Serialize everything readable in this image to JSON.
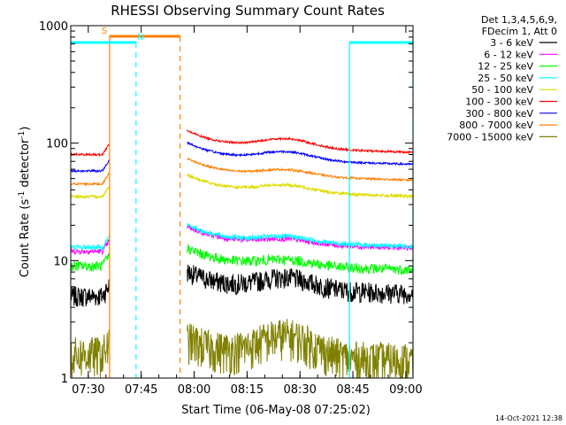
{
  "chart_data": {
    "type": "line",
    "title": "RHESSI Observing Summary Count Rates",
    "ylabel_parts": [
      "Count Rate (s",
      "-1",
      " detector",
      "-1",
      ")"
    ],
    "xlabel": "Start Time (06-May-08 07:25:02)",
    "footer_date": "14-Oct-2021 12:38",
    "yscale": "log",
    "ylim": [
      1,
      1000
    ],
    "xlim_minutes": [
      0,
      97
    ],
    "y_ticks": [
      {
        "value": 1,
        "label": "1"
      },
      {
        "value": 10,
        "label": "10"
      },
      {
        "value": 100,
        "label": "100"
      },
      {
        "value": 1000,
        "label": "1000"
      }
    ],
    "x_ticks": [
      {
        "minute": 4.97,
        "label": "07:30"
      },
      {
        "minute": 19.97,
        "label": "07:45"
      },
      {
        "minute": 34.97,
        "label": "08:00"
      },
      {
        "minute": 49.97,
        "label": "08:15"
      },
      {
        "minute": 64.97,
        "label": "08:30"
      },
      {
        "minute": 79.97,
        "label": "08:45"
      },
      {
        "minute": 94.97,
        "label": "09:00"
      }
    ],
    "legend_header": [
      "Det 1,3,4,5,6,9,",
      "FDecim 1, Att 0"
    ],
    "gap_minutes": [
      11,
      33
    ],
    "series": [
      {
        "name": "3 - 6 keV",
        "color": "#000000",
        "level_a": 5.0,
        "level_b": 6.0,
        "bump": 1.25,
        "noise": 0.2
      },
      {
        "name": "6 - 12 keV",
        "color": "#ff00ff",
        "level_a": 12.0,
        "level_b": 14.5,
        "bump": 1.1,
        "noise": 0.05
      },
      {
        "name": "12 - 25 keV",
        "color": "#00ff00",
        "level_a": 9.0,
        "level_b": 9.5,
        "bump": 1.12,
        "noise": 0.1
      },
      {
        "name": "25 - 50 keV",
        "color": "#00ffff",
        "level_a": 13.0,
        "level_b": 15.0,
        "bump": 1.12,
        "noise": 0.05
      },
      {
        "name": "50 - 100 keV",
        "color": "#dddd00",
        "level_a": 35.0,
        "level_b": 40.0,
        "bump": 1.15,
        "noise": 0.03
      },
      {
        "name": "100 - 300 keV",
        "color": "#ff0000",
        "level_a": 80.0,
        "level_b": 95.0,
        "bump": 1.2,
        "noise": 0.02
      },
      {
        "name": "300 - 800 keV",
        "color": "#0000ff",
        "level_a": 58.0,
        "level_b": 75.0,
        "bump": 1.18,
        "noise": 0.02
      },
      {
        "name": "800 - 7000 keV",
        "color": "#ff8000",
        "level_a": 45.0,
        "level_b": 55.0,
        "bump": 1.13,
        "noise": 0.02
      },
      {
        "name": "7000 - 15000 keV",
        "color": "#808000",
        "level_a": 1.6,
        "level_b": 1.6,
        "bump": 1.5,
        "noise": 0.4
      }
    ],
    "flags": [
      {
        "label": "S",
        "color": "#ff8000",
        "start": 11.0,
        "end": 31.0,
        "start_line": "solid",
        "end_line": "dashed"
      },
      {
        "label": "N",
        "color": "#00ffff",
        "start": 0.0,
        "end": 18.5,
        "start_line": "none",
        "end_line": "dashed"
      },
      {
        "label": "",
        "color": "#00ffff",
        "start": 79.0,
        "end": 97.0,
        "start_line": "solid",
        "end_line": "dashed"
      }
    ]
  }
}
